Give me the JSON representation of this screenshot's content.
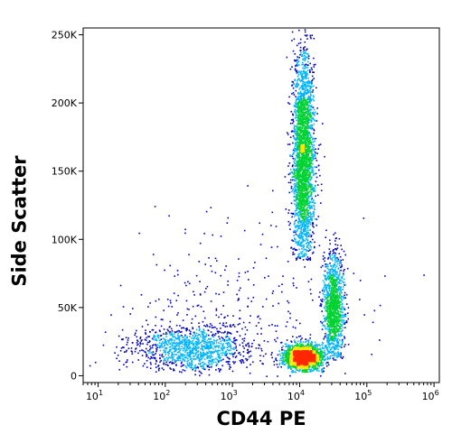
{
  "chart_data": {
    "type": "scatter",
    "subtype": "flow-cytometry density dot plot",
    "xlabel": "CD44 PE",
    "ylabel": "Side Scatter",
    "xscale": "log",
    "xlim": [
      6,
      1200000
    ],
    "ylim": [
      -5000,
      255000
    ],
    "x_ticks": [
      {
        "value": 10,
        "base": "10",
        "exp": "1"
      },
      {
        "value": 100,
        "base": "10",
        "exp": "2"
      },
      {
        "value": 1000,
        "base": "10",
        "exp": "3"
      },
      {
        "value": 10000,
        "base": "10",
        "exp": "4"
      },
      {
        "value": 100000,
        "base": "10",
        "exp": "5"
      },
      {
        "value": 1000000,
        "base": "10",
        "exp": "6"
      }
    ],
    "y_ticks": [
      {
        "value": 0,
        "label": "0"
      },
      {
        "value": 50000,
        "label": "50K"
      },
      {
        "value": 100000,
        "label": "100K"
      },
      {
        "value": 150000,
        "label": "150K"
      },
      {
        "value": 200000,
        "label": "200K"
      },
      {
        "value": 250000,
        "label": "250K"
      }
    ],
    "color_scale": [
      "#0000c8",
      "#00b4ff",
      "#00d232",
      "#ffe600",
      "#ff2800"
    ],
    "populations": [
      {
        "x_log_center": 4.05,
        "x_log_spread": 0.08,
        "y_center": 160000,
        "y_spread": 40000,
        "y_range": [
          85000,
          255000
        ],
        "events": 2600
      },
      {
        "x_log_center": 4.05,
        "x_log_spread": 0.15,
        "y_center": 14000,
        "y_spread": 5000,
        "y_range": [
          3000,
          40000
        ],
        "events": 1700
      },
      {
        "x_log_center": 4.5,
        "x_log_spread": 0.08,
        "y_center": 50000,
        "y_spread": 20000,
        "y_range": [
          12000,
          110000
        ],
        "events": 1200
      },
      {
        "x_log_center": 2.4,
        "x_log_spread": 0.45,
        "y_center": 20000,
        "y_spread": 9000,
        "y_range": [
          3000,
          60000
        ],
        "events": 1100
      },
      {
        "x_log_center": 3.0,
        "x_log_spread": 0.9,
        "y_center": 45000,
        "y_spread": 35000,
        "y_range": [
          0,
          160000
        ],
        "events": 300
      }
    ]
  }
}
